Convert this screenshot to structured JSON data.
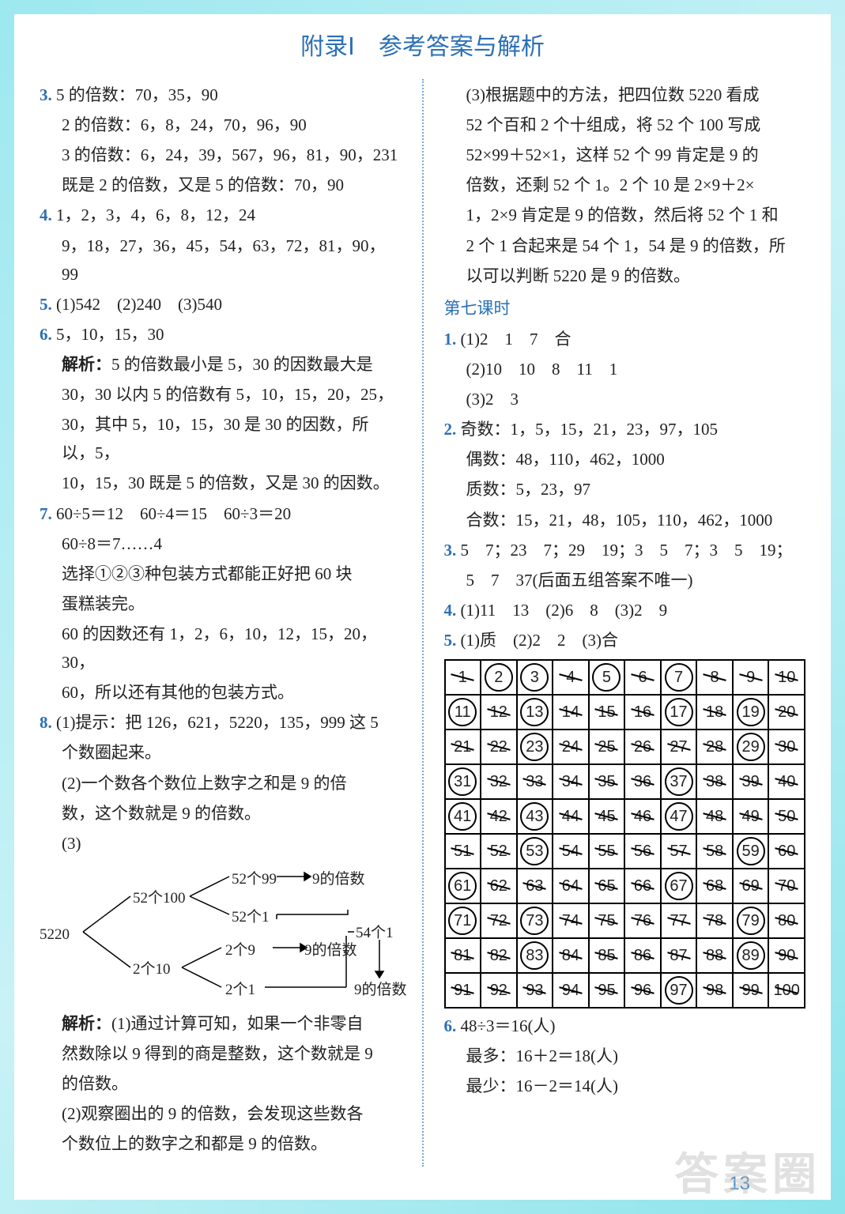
{
  "title": "附录Ⅰ　参考答案与解析",
  "page_number": "13",
  "watermark": "答案圈",
  "left": {
    "q3": {
      "l1": "5 的倍数：70，35，90",
      "l2": "2 的倍数：6，8，24，70，96，90",
      "l3": "3 的倍数：6，24，39，567，96，81，90，231",
      "l4": "既是 2 的倍数，又是 5 的倍数：70，90"
    },
    "q4": {
      "l1": "1，2，3，4，6，8，12，24",
      "l2": "9，18，27，36，45，54，63，72，81，90，99"
    },
    "q5": "(1)542　(2)240　(3)540",
    "q6": "5，10，15，30",
    "a6": {
      "l1": "5 的倍数最小是 5，30 的因数最大是",
      "l2": "30，30 以内 5 的倍数有 5，10，15，20，25，",
      "l3": "30，其中 5，10，15，30 是 30 的因数，所以，5，",
      "l4": "10，15，30 既是 5 的倍数，又是 30 的因数。"
    },
    "q7": {
      "l1": "60÷5＝12　60÷4＝15　60÷3＝20",
      "l2": "60÷8＝7……4",
      "l3": "选择①②③种包装方式都能正好把 60 块",
      "l4": "蛋糕装完。",
      "l5": "60 的因数还有 1，2，6，10，12，15，20，30，",
      "l6": "60，所以还有其他的包装方式。"
    },
    "q8": {
      "l1": "(1)提示：把 126，621，5220，135，999 这 5",
      "l2": "个数圈起来。",
      "l3": "(2)一个数各个数位上数字之和是 9 的倍",
      "l4": "数，这个数就是 9 的倍数。",
      "l5": "(3)"
    },
    "tree": {
      "root": "5220",
      "b1": "52个100",
      "b1a": "52个99",
      "b1a2": "9的倍数",
      "b1b": "52个1",
      "b2": "2个10",
      "b2a": "2个9",
      "b2a2": "9的倍数",
      "b2b": "2个1",
      "sum": "54个1",
      "final": "9的倍数"
    },
    "a8": {
      "l1": "(1)通过计算可知，如果一个非零自",
      "l2": "然数除以 9 得到的商是整数，这个数就是 9",
      "l3": "的倍数。",
      "l4": "(2)观察圈出的 9 的倍数，会发现这些数各",
      "l5": "个数位上的数字之和都是 9 的倍数。"
    }
  },
  "right": {
    "cont": {
      "l1": "(3)根据题中的方法，把四位数 5220 看成",
      "l2": "52 个百和 2 个十组成，将 52 个 100 写成",
      "l3": "52×99＋52×1，这样 52 个 99 肯定是 9 的",
      "l4": "倍数，还剩 52 个 1。2 个 10 是 2×9＋2×",
      "l5": "1，2×9 肯定是 9 的倍数，然后将 52 个 1 和",
      "l6": "2 个 1 合起来是 54 个 1，54 是 9 的倍数，所",
      "l7": "以可以判断 5220 是 9 的倍数。"
    },
    "lesson7": "第七课时",
    "q1": {
      "l1": "(1)2　1　7　合",
      "l2": "(2)10　10　8　11　1",
      "l3": "(3)2　3"
    },
    "q2": {
      "l1": "奇数：1，5，15，21，23，97，105",
      "l2": "偶数：48，110，462，1000",
      "l3": "质数：5，23，97",
      "l4": "合数：15，21，48，105，110，462，1000"
    },
    "q3": {
      "l1": "5　7；23　7；29　19；3　5　7；3　5　19；",
      "l2": "5　7　37(后面五组答案不唯一)"
    },
    "q4": "(1)11　13　(2)6　8　(3)2　9",
    "q5": "(1)质　(2)2　2　(3)合",
    "grid": {
      "primes": [
        2,
        3,
        5,
        7,
        11,
        13,
        17,
        19,
        23,
        29,
        31,
        37,
        41,
        43,
        47,
        53,
        59,
        61,
        67,
        71,
        73,
        79,
        83,
        89,
        97
      ]
    },
    "q6": {
      "l1": "48÷3＝16(人)",
      "l2": "最多：16＋2＝18(人)",
      "l3": "最少：16－2＝14(人)"
    }
  },
  "colors": {
    "accent": "#2b6fb5",
    "border": "#9ee8ef",
    "text": "#222222"
  }
}
